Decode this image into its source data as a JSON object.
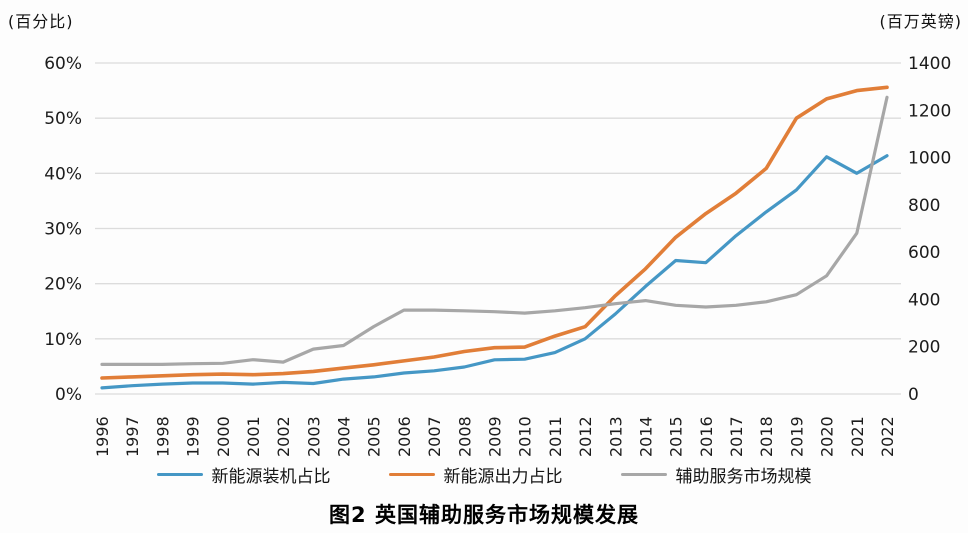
{
  "axes": {
    "left_title": "(百分比)",
    "right_title": "(百万英镑)"
  },
  "legend": [
    {
      "label": "新能源装机占比",
      "color": "#4597C5"
    },
    {
      "label": "新能源出力占比",
      "color": "#E17E38"
    },
    {
      "label": "辅助服务市场规模",
      "color": "#A7A7A7"
    }
  ],
  "caption": "图2  英国辅助服务市场规模发展",
  "colors": {
    "gridline": "#DCDCDC",
    "background": "#FDFDFD"
  },
  "chart_data": {
    "type": "line",
    "title": "图2 英国辅助服务市场规模发展",
    "grid": true,
    "legend_position": "bottom",
    "x": [
      "1996",
      "1997",
      "1998",
      "1999",
      "2000",
      "2001",
      "2002",
      "2003",
      "2004",
      "2005",
      "2006",
      "2007",
      "2008",
      "2009",
      "2010",
      "2011",
      "2012",
      "2013",
      "2014",
      "2015",
      "2016",
      "2017",
      "2018",
      "2019",
      "2020",
      "2021",
      "2022"
    ],
    "left_axis": {
      "title": "(百分比)",
      "min": 0,
      "max": 60,
      "tick_values": [
        0,
        10,
        20,
        30,
        40,
        50,
        60
      ],
      "tick_labels": [
        "0%",
        "10%",
        "20%",
        "30%",
        "40%",
        "50%",
        "60%"
      ]
    },
    "right_axis": {
      "title": "(百万英镑)",
      "min": 0,
      "max": 1400,
      "tick_values": [
        0,
        200,
        400,
        600,
        800,
        1000,
        1200,
        1400
      ],
      "tick_labels": [
        "0",
        "200",
        "400",
        "600",
        "800",
        "1000",
        "1200",
        "1400"
      ]
    },
    "series": [
      {
        "name": "新能源装机占比",
        "axis": "left",
        "unit": "%",
        "color": "#4597C5",
        "values": [
          1.1,
          1.5,
          1.8,
          2.0,
          2.0,
          1.8,
          2.1,
          1.9,
          2.7,
          3.1,
          3.8,
          4.2,
          4.9,
          6.2,
          6.3,
          7.5,
          10.0,
          14.5,
          19.5,
          24.2,
          23.8,
          28.7,
          33.0,
          37.0,
          43.0,
          40.0,
          43.2
        ]
      },
      {
        "name": "新能源出力占比",
        "axis": "left",
        "unit": "%",
        "color": "#E17E38",
        "values": [
          2.9,
          3.1,
          3.3,
          3.5,
          3.6,
          3.5,
          3.7,
          4.1,
          4.7,
          5.3,
          6.0,
          6.7,
          7.7,
          8.4,
          8.5,
          10.5,
          12.2,
          17.8,
          22.7,
          28.4,
          32.7,
          36.4,
          40.9,
          50.0,
          53.5,
          55.0,
          55.6
        ]
      },
      {
        "name": "辅助服务市场规模",
        "axis": "right",
        "unit": "百万英镑",
        "color": "#A7A7A7",
        "values": [
          125,
          125,
          125,
          128,
          130,
          145,
          135,
          190,
          205,
          285,
          355,
          355,
          352,
          348,
          342,
          352,
          365,
          382,
          395,
          375,
          368,
          375,
          390,
          420,
          500,
          680,
          1255
        ]
      }
    ]
  }
}
